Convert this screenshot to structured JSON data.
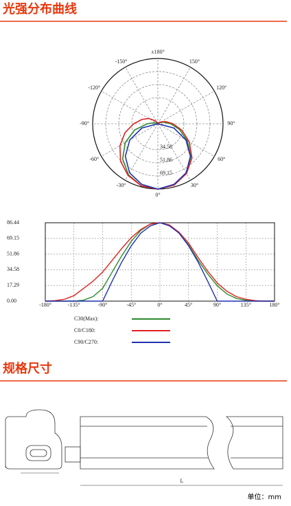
{
  "sections": [
    {
      "title": "光强分布曲线"
    },
    {
      "title": "规格尺寸"
    }
  ],
  "chart_data": [
    {
      "type": "polar",
      "theta": [
        -180,
        -165,
        -150,
        -135,
        -120,
        -105,
        -90,
        -75,
        -60,
        -45,
        -30,
        -15,
        0,
        15,
        30,
        45,
        60,
        75,
        90,
        105,
        120,
        135,
        150,
        165,
        180
      ],
      "series": [
        {
          "color": "#2a8a2a",
          "values": [
            0,
            0,
            0,
            0,
            1,
            5,
            14,
            32,
            50,
            66,
            78,
            85,
            86.44,
            84,
            75,
            62,
            45,
            30,
            17,
            8,
            3,
            1,
            0,
            0,
            0
          ]
        },
        {
          "color": "#e02020",
          "values": [
            0,
            0.5,
            2,
            6,
            14,
            22,
            32,
            45,
            58,
            70,
            79,
            85,
            86.44,
            84,
            76,
            64,
            48,
            33,
            20,
            11,
            5,
            2,
            0.5,
            0,
            0
          ]
        },
        {
          "color": "#2030b0",
          "values": [
            0,
            0,
            0,
            0,
            0,
            0,
            0,
            22,
            43,
            61,
            75,
            83,
            86.44,
            83,
            75,
            61,
            43,
            22,
            0,
            0,
            0,
            0,
            0,
            0,
            0
          ]
        }
      ],
      "rlim": [
        0,
        86.44
      ],
      "rticks": [
        34.58,
        51.86,
        69.15
      ],
      "thetaticks": [
        {
          "value": 180,
          "label": "±180°"
        },
        {
          "value": -150,
          "label": "-150°"
        },
        {
          "value": 150,
          "label": "150°"
        },
        {
          "value": -120,
          "label": "-120°"
        },
        {
          "value": 120,
          "label": "120°"
        },
        {
          "value": -90,
          "label": "-90°"
        },
        {
          "value": 90,
          "label": "90°"
        },
        {
          "value": -60,
          "label": "-60°"
        },
        {
          "value": 60,
          "label": "60°"
        },
        {
          "value": -30,
          "label": "-30°"
        },
        {
          "value": 30,
          "label": "30°"
        },
        {
          "value": 0,
          "label": "0°"
        }
      ]
    },
    {
      "type": "line",
      "x": [
        -180,
        -165,
        -150,
        -135,
        -120,
        -105,
        -90,
        -75,
        -60,
        -45,
        -30,
        -15,
        0,
        15,
        30,
        45,
        60,
        75,
        90,
        105,
        120,
        135,
        150,
        165,
        180
      ],
      "series": [
        {
          "name": "C30(Max):",
          "color": "#2a8a2a",
          "values": [
            0,
            0,
            0,
            0,
            1,
            5,
            14,
            32,
            50,
            66,
            78,
            85,
            86.44,
            84,
            75,
            62,
            45,
            30,
            17,
            8,
            3,
            1,
            0,
            0,
            0
          ]
        },
        {
          "name": "C0/C180:",
          "color": "#e02020",
          "values": [
            0,
            0.5,
            2,
            6,
            14,
            22,
            32,
            45,
            58,
            70,
            79,
            85,
            86.44,
            84,
            76,
            64,
            48,
            33,
            20,
            11,
            5,
            2,
            0.5,
            0,
            0
          ]
        },
        {
          "name": "C90/C270:",
          "color": "#2030b0",
          "values": [
            0,
            0,
            0,
            0,
            0,
            0,
            0,
            22,
            43,
            61,
            75,
            83,
            86.44,
            83,
            75,
            61,
            43,
            22,
            0,
            0,
            0,
            0,
            0,
            0,
            0
          ]
        }
      ],
      "xlim": [
        -180,
        180
      ],
      "xticks": [
        {
          "value": -180,
          "label": "-180°"
        },
        {
          "value": -135,
          "label": "-135°"
        },
        {
          "value": -90,
          "label": "-90°"
        },
        {
          "value": -45,
          "label": "-45°"
        },
        {
          "value": 0,
          "label": "0°"
        },
        {
          "value": 45,
          "label": "45°"
        },
        {
          "value": 90,
          "label": "90°"
        },
        {
          "value": 135,
          "label": "135°"
        },
        {
          "value": 180,
          "label": "180°"
        }
      ],
      "ylim": [
        0,
        86.44
      ],
      "yticks": [
        {
          "value": 0,
          "label": "0.00"
        },
        17.29,
        34.58,
        51.86,
        69.15,
        86.44
      ],
      "grid": true
    }
  ],
  "drawing": {
    "dimension_label": "L",
    "unit": "单位：mm"
  }
}
